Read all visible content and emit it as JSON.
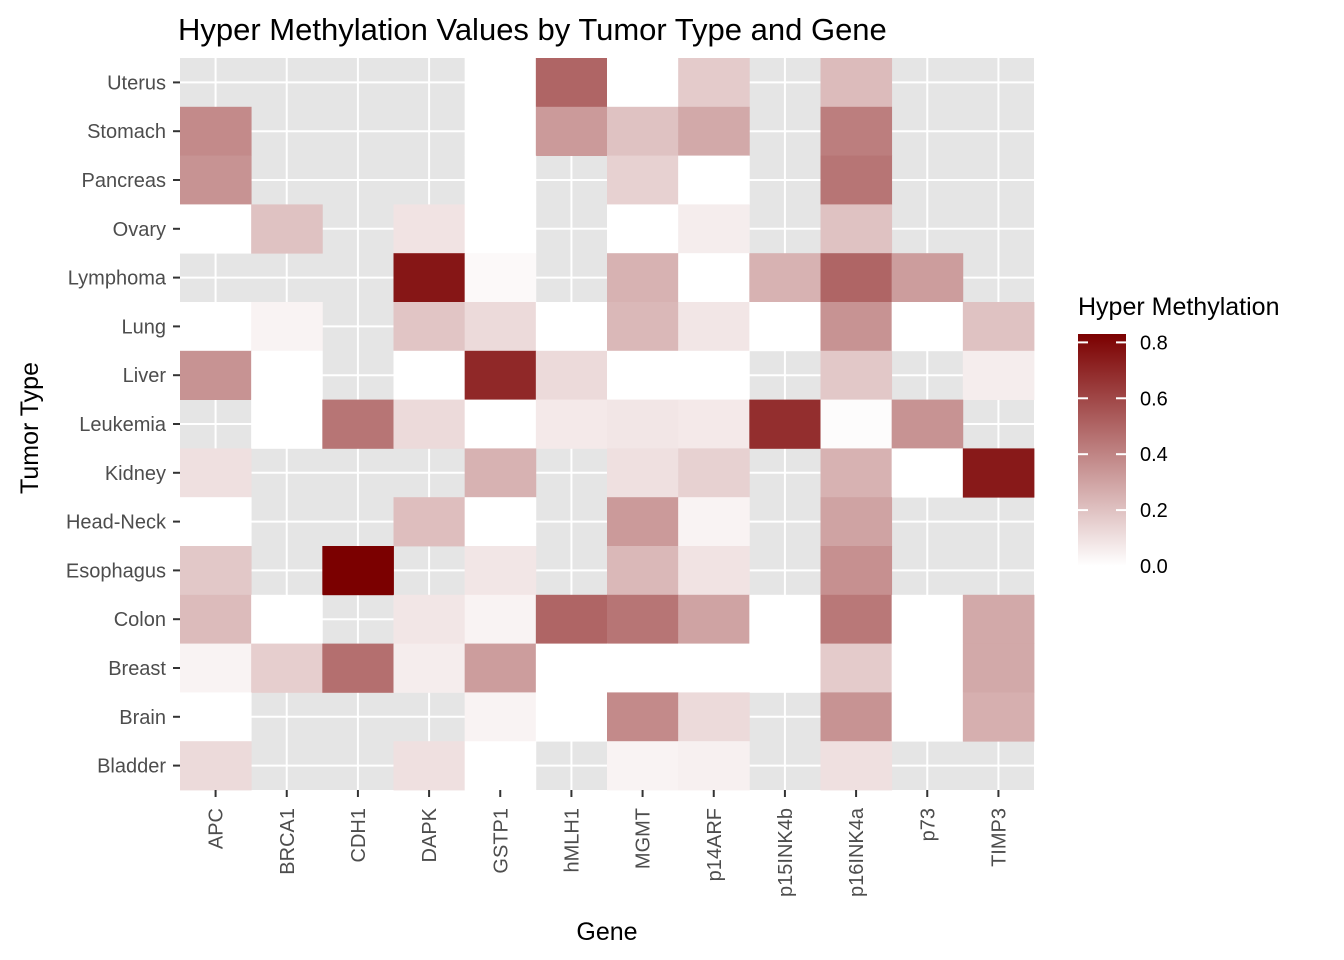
{
  "chart_data": {
    "type": "heatmap",
    "title": "Hyper Methylation Values by Tumor Type and Gene",
    "xlabel": "Gene",
    "ylabel": "Tumor Type",
    "x_categories": [
      "APC",
      "BRCA1",
      "CDH1",
      "DAPK",
      "GSTP1",
      "hMLH1",
      "MGMT",
      "p14ARF",
      "p15INK4b",
      "p16INK4a",
      "p73",
      "TIMP3"
    ],
    "y_categories": [
      "Bladder",
      "Brain",
      "Breast",
      "Colon",
      "Esophagus",
      "Head-Neck",
      "Kidney",
      "Leukemia",
      "Liver",
      "Lung",
      "Lymphoma",
      "Ovary",
      "Pancreas",
      "Stomach",
      "Uterus"
    ],
    "cells": [
      {
        "tumor": "Uterus",
        "gene": "GSTP1",
        "value": 0.0
      },
      {
        "tumor": "Uterus",
        "gene": "hMLH1",
        "value": 0.5
      },
      {
        "tumor": "Uterus",
        "gene": "MGMT",
        "value": 0.0
      },
      {
        "tumor": "Uterus",
        "gene": "p14ARF",
        "value": 0.17
      },
      {
        "tumor": "Uterus",
        "gene": "p16INK4a",
        "value": 0.22
      },
      {
        "tumor": "Stomach",
        "gene": "APC",
        "value": 0.38
      },
      {
        "tumor": "Stomach",
        "gene": "GSTP1",
        "value": 0.0
      },
      {
        "tumor": "Stomach",
        "gene": "hMLH1",
        "value": 0.33
      },
      {
        "tumor": "Stomach",
        "gene": "MGMT",
        "value": 0.2
      },
      {
        "tumor": "Stomach",
        "gene": "p14ARF",
        "value": 0.28
      },
      {
        "tumor": "Stomach",
        "gene": "p16INK4a",
        "value": 0.42
      },
      {
        "tumor": "Pancreas",
        "gene": "APC",
        "value": 0.35
      },
      {
        "tumor": "Pancreas",
        "gene": "GSTP1",
        "value": 0.0
      },
      {
        "tumor": "Pancreas",
        "gene": "MGMT",
        "value": 0.15
      },
      {
        "tumor": "Pancreas",
        "gene": "p14ARF",
        "value": 0.0
      },
      {
        "tumor": "Pancreas",
        "gene": "p16INK4a",
        "value": 0.45
      },
      {
        "tumor": "Ovary",
        "gene": "APC",
        "value": 0.0
      },
      {
        "tumor": "Ovary",
        "gene": "BRCA1",
        "value": 0.2
      },
      {
        "tumor": "Ovary",
        "gene": "DAPK",
        "value": 0.09
      },
      {
        "tumor": "Ovary",
        "gene": "GSTP1",
        "value": 0.0
      },
      {
        "tumor": "Ovary",
        "gene": "MGMT",
        "value": 0.0
      },
      {
        "tumor": "Ovary",
        "gene": "p14ARF",
        "value": 0.06
      },
      {
        "tumor": "Ovary",
        "gene": "p16INK4a",
        "value": 0.2
      },
      {
        "tumor": "Lymphoma",
        "gene": "DAPK",
        "value": 0.76
      },
      {
        "tumor": "Lymphoma",
        "gene": "GSTP1",
        "value": 0.02
      },
      {
        "tumor": "Lymphoma",
        "gene": "MGMT",
        "value": 0.25
      },
      {
        "tumor": "Lymphoma",
        "gene": "p14ARF",
        "value": 0.0
      },
      {
        "tumor": "Lymphoma",
        "gene": "p15INK4b",
        "value": 0.25
      },
      {
        "tumor": "Lymphoma",
        "gene": "p16INK4a",
        "value": 0.5
      },
      {
        "tumor": "Lymphoma",
        "gene": "p73",
        "value": 0.32
      },
      {
        "tumor": "Lung",
        "gene": "APC",
        "value": 0.0
      },
      {
        "tumor": "Lung",
        "gene": "BRCA1",
        "value": 0.04
      },
      {
        "tumor": "Lung",
        "gene": "DAPK",
        "value": 0.19
      },
      {
        "tumor": "Lung",
        "gene": "GSTP1",
        "value": 0.12
      },
      {
        "tumor": "Lung",
        "gene": "hMLH1",
        "value": 0.0
      },
      {
        "tumor": "Lung",
        "gene": "MGMT",
        "value": 0.23
      },
      {
        "tumor": "Lung",
        "gene": "p14ARF",
        "value": 0.08
      },
      {
        "tumor": "Lung",
        "gene": "p15INK4b",
        "value": 0.0
      },
      {
        "tumor": "Lung",
        "gene": "p16INK4a",
        "value": 0.35
      },
      {
        "tumor": "Lung",
        "gene": "p73",
        "value": 0.0
      },
      {
        "tumor": "Lung",
        "gene": "TIMP3",
        "value": 0.2
      },
      {
        "tumor": "Liver",
        "gene": "APC",
        "value": 0.35
      },
      {
        "tumor": "Liver",
        "gene": "BRCA1",
        "value": 0.0
      },
      {
        "tumor": "Liver",
        "gene": "DAPK",
        "value": 0.0
      },
      {
        "tumor": "Liver",
        "gene": "GSTP1",
        "value": 0.7
      },
      {
        "tumor": "Liver",
        "gene": "hMLH1",
        "value": 0.12
      },
      {
        "tumor": "Liver",
        "gene": "MGMT",
        "value": 0.0
      },
      {
        "tumor": "Liver",
        "gene": "p14ARF",
        "value": 0.0
      },
      {
        "tumor": "Liver",
        "gene": "p16INK4a",
        "value": 0.18
      },
      {
        "tumor": "Liver",
        "gene": "TIMP3",
        "value": 0.06
      },
      {
        "tumor": "Leukemia",
        "gene": "BRCA1",
        "value": 0.0
      },
      {
        "tumor": "Leukemia",
        "gene": "CDH1",
        "value": 0.45
      },
      {
        "tumor": "Leukemia",
        "gene": "DAPK",
        "value": 0.12
      },
      {
        "tumor": "Leukemia",
        "gene": "GSTP1",
        "value": 0.0
      },
      {
        "tumor": "Leukemia",
        "gene": "hMLH1",
        "value": 0.07
      },
      {
        "tumor": "Leukemia",
        "gene": "MGMT",
        "value": 0.08
      },
      {
        "tumor": "Leukemia",
        "gene": "p14ARF",
        "value": 0.07
      },
      {
        "tumor": "Leukemia",
        "gene": "p15INK4b",
        "value": 0.68
      },
      {
        "tumor": "Leukemia",
        "gene": "p16INK4a",
        "value": 0.01
      },
      {
        "tumor": "Leukemia",
        "gene": "p73",
        "value": 0.35
      },
      {
        "tumor": "Kidney",
        "gene": "APC",
        "value": 0.1
      },
      {
        "tumor": "Kidney",
        "gene": "GSTP1",
        "value": 0.25
      },
      {
        "tumor": "Kidney",
        "gene": "MGMT",
        "value": 0.1
      },
      {
        "tumor": "Kidney",
        "gene": "p14ARF",
        "value": 0.15
      },
      {
        "tumor": "Kidney",
        "gene": "p16INK4a",
        "value": 0.25
      },
      {
        "tumor": "Kidney",
        "gene": "p73",
        "value": 0.0
      },
      {
        "tumor": "Kidney",
        "gene": "TIMP3",
        "value": 0.75
      },
      {
        "tumor": "Head-Neck",
        "gene": "APC",
        "value": 0.0
      },
      {
        "tumor": "Head-Neck",
        "gene": "DAPK",
        "value": 0.21
      },
      {
        "tumor": "Head-Neck",
        "gene": "GSTP1",
        "value": 0.0
      },
      {
        "tumor": "Head-Neck",
        "gene": "MGMT",
        "value": 0.33
      },
      {
        "tumor": "Head-Neck",
        "gene": "p14ARF",
        "value": 0.04
      },
      {
        "tumor": "Head-Neck",
        "gene": "p16INK4a",
        "value": 0.3
      },
      {
        "tumor": "Esophagus",
        "gene": "APC",
        "value": 0.18
      },
      {
        "tumor": "Esophagus",
        "gene": "CDH1",
        "value": 0.83
      },
      {
        "tumor": "Esophagus",
        "gene": "GSTP1",
        "value": 0.08
      },
      {
        "tumor": "Esophagus",
        "gene": "MGMT",
        "value": 0.23
      },
      {
        "tumor": "Esophagus",
        "gene": "p14ARF",
        "value": 0.09
      },
      {
        "tumor": "Esophagus",
        "gene": "p16INK4a",
        "value": 0.36
      },
      {
        "tumor": "Colon",
        "gene": "APC",
        "value": 0.22
      },
      {
        "tumor": "Colon",
        "gene": "BRCA1",
        "value": 0.0
      },
      {
        "tumor": "Colon",
        "gene": "DAPK",
        "value": 0.08
      },
      {
        "tumor": "Colon",
        "gene": "GSTP1",
        "value": 0.04
      },
      {
        "tumor": "Colon",
        "gene": "hMLH1",
        "value": 0.5
      },
      {
        "tumor": "Colon",
        "gene": "MGMT",
        "value": 0.45
      },
      {
        "tumor": "Colon",
        "gene": "p14ARF",
        "value": 0.3
      },
      {
        "tumor": "Colon",
        "gene": "p15INK4b",
        "value": 0.0
      },
      {
        "tumor": "Colon",
        "gene": "p16INK4a",
        "value": 0.44
      },
      {
        "tumor": "Colon",
        "gene": "p73",
        "value": 0.0
      },
      {
        "tumor": "Colon",
        "gene": "TIMP3",
        "value": 0.28
      },
      {
        "tumor": "Breast",
        "gene": "APC",
        "value": 0.04
      },
      {
        "tumor": "Breast",
        "gene": "BRCA1",
        "value": 0.16
      },
      {
        "tumor": "Breast",
        "gene": "CDH1",
        "value": 0.47
      },
      {
        "tumor": "Breast",
        "gene": "DAPK",
        "value": 0.06
      },
      {
        "tumor": "Breast",
        "gene": "GSTP1",
        "value": 0.32
      },
      {
        "tumor": "Breast",
        "gene": "hMLH1",
        "value": 0.0
      },
      {
        "tumor": "Breast",
        "gene": "MGMT",
        "value": 0.0
      },
      {
        "tumor": "Breast",
        "gene": "p14ARF",
        "value": 0.0
      },
      {
        "tumor": "Breast",
        "gene": "p15INK4b",
        "value": 0.0
      },
      {
        "tumor": "Breast",
        "gene": "p16INK4a",
        "value": 0.17
      },
      {
        "tumor": "Breast",
        "gene": "p73",
        "value": 0.0
      },
      {
        "tumor": "Breast",
        "gene": "TIMP3",
        "value": 0.28
      },
      {
        "tumor": "Brain",
        "gene": "APC",
        "value": 0.0
      },
      {
        "tumor": "Brain",
        "gene": "GSTP1",
        "value": 0.04
      },
      {
        "tumor": "Brain",
        "gene": "hMLH1",
        "value": 0.0
      },
      {
        "tumor": "Brain",
        "gene": "MGMT",
        "value": 0.38
      },
      {
        "tumor": "Brain",
        "gene": "p14ARF",
        "value": 0.12
      },
      {
        "tumor": "Brain",
        "gene": "p16INK4a",
        "value": 0.35
      },
      {
        "tumor": "Brain",
        "gene": "p73",
        "value": 0.0
      },
      {
        "tumor": "Brain",
        "gene": "TIMP3",
        "value": 0.26
      },
      {
        "tumor": "Bladder",
        "gene": "APC",
        "value": 0.12
      },
      {
        "tumor": "Bladder",
        "gene": "DAPK",
        "value": 0.1
      },
      {
        "tumor": "Bladder",
        "gene": "GSTP1",
        "value": 0.0
      },
      {
        "tumor": "Bladder",
        "gene": "MGMT",
        "value": 0.04
      },
      {
        "tumor": "Bladder",
        "gene": "p14ARF",
        "value": 0.05
      },
      {
        "tumor": "Bladder",
        "gene": "p16INK4a",
        "value": 0.1
      }
    ],
    "legend": {
      "title": "Hyper Methylation",
      "ticks": [
        0.0,
        0.2,
        0.4,
        0.6,
        0.8
      ],
      "tick_labels": [
        "0.0",
        "0.2",
        "0.4",
        "0.6",
        "0.8"
      ],
      "range": [
        0.0,
        0.83
      ],
      "low_color": "#ffffff",
      "high_color": "#7b0000",
      "placement": "right"
    },
    "panel_background": "#e5e5e5",
    "grid": true,
    "grid_color": "#ffffff"
  }
}
